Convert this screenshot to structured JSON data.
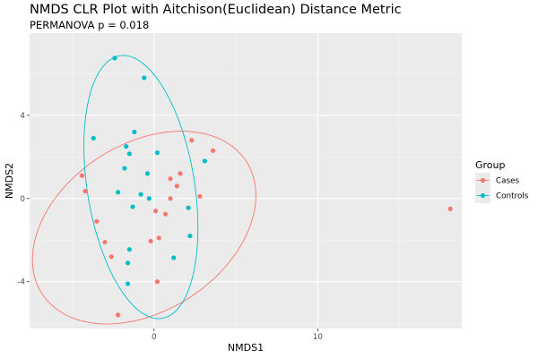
{
  "chart_data": {
    "type": "scatter",
    "title": "NMDS CLR Plot with Aitchison(Euclidean) Distance Metric",
    "subtitle": "PERMANOVA p = 0.018",
    "xlabel": "NMDS1",
    "ylabel": "NMDS2",
    "xlim": [
      -7.6,
      18.8
    ],
    "ylim": [
      -6.25,
      7.95
    ],
    "x_ticks": [
      0,
      10
    ],
    "y_ticks": [
      -4,
      0,
      4
    ],
    "x_tick_labels": [
      "0",
      "10"
    ],
    "y_tick_labels": [
      "-4",
      "0",
      "4"
    ],
    "grid": true,
    "legend": {
      "title": "Group",
      "placement": "right"
    },
    "series": [
      {
        "name": "Cases",
        "color": "#F8766D",
        "points": [
          {
            "x": -4.4,
            "y": 1.1
          },
          {
            "x": -4.2,
            "y": 0.35
          },
          {
            "x": -3.5,
            "y": -1.1
          },
          {
            "x": -3.0,
            "y": -2.1
          },
          {
            "x": -2.6,
            "y": -2.8
          },
          {
            "x": -2.2,
            "y": -5.6
          },
          {
            "x": -0.2,
            "y": -2.05
          },
          {
            "x": 0.1,
            "y": -0.6
          },
          {
            "x": 0.2,
            "y": -4.0
          },
          {
            "x": 0.3,
            "y": -1.9
          },
          {
            "x": 0.7,
            "y": -0.75
          },
          {
            "x": 1.0,
            "y": 0.0
          },
          {
            "x": 1.0,
            "y": 0.95
          },
          {
            "x": 1.4,
            "y": 0.6
          },
          {
            "x": 1.6,
            "y": 1.2
          },
          {
            "x": 2.3,
            "y": 2.8
          },
          {
            "x": 2.8,
            "y": 0.1
          },
          {
            "x": 3.6,
            "y": 2.3
          },
          {
            "x": 18.1,
            "y": -0.5
          }
        ],
        "ellipse": {
          "center": [
            -0.6,
            -1.4
          ],
          "semi_axes": [
            7.1,
            4.2
          ],
          "angle_deg": 20
        }
      },
      {
        "name": "Controls",
        "color": "#00BFC4",
        "points": [
          {
            "x": -2.4,
            "y": 6.75
          },
          {
            "x": -0.6,
            "y": 5.8
          },
          {
            "x": -3.7,
            "y": 2.9
          },
          {
            "x": -1.2,
            "y": 3.2
          },
          {
            "x": -1.7,
            "y": 2.5
          },
          {
            "x": -1.5,
            "y": 2.15
          },
          {
            "x": 0.2,
            "y": 2.2
          },
          {
            "x": -1.8,
            "y": 1.45
          },
          {
            "x": -0.4,
            "y": 1.2
          },
          {
            "x": -2.2,
            "y": 0.3
          },
          {
            "x": -0.8,
            "y": 0.2
          },
          {
            "x": -0.3,
            "y": 0.0
          },
          {
            "x": -1.3,
            "y": -0.4
          },
          {
            "x": 2.1,
            "y": -0.45
          },
          {
            "x": 3.1,
            "y": 1.8
          },
          {
            "x": 2.2,
            "y": -1.8
          },
          {
            "x": -1.5,
            "y": -2.45
          },
          {
            "x": 1.2,
            "y": -2.85
          },
          {
            "x": -1.6,
            "y": -3.1
          },
          {
            "x": -1.6,
            "y": -4.1
          }
        ],
        "ellipse": {
          "center": [
            -0.8,
            0.55
          ],
          "semi_axes": [
            6.45,
            3.25
          ],
          "angle_deg": 103
        }
      }
    ]
  }
}
